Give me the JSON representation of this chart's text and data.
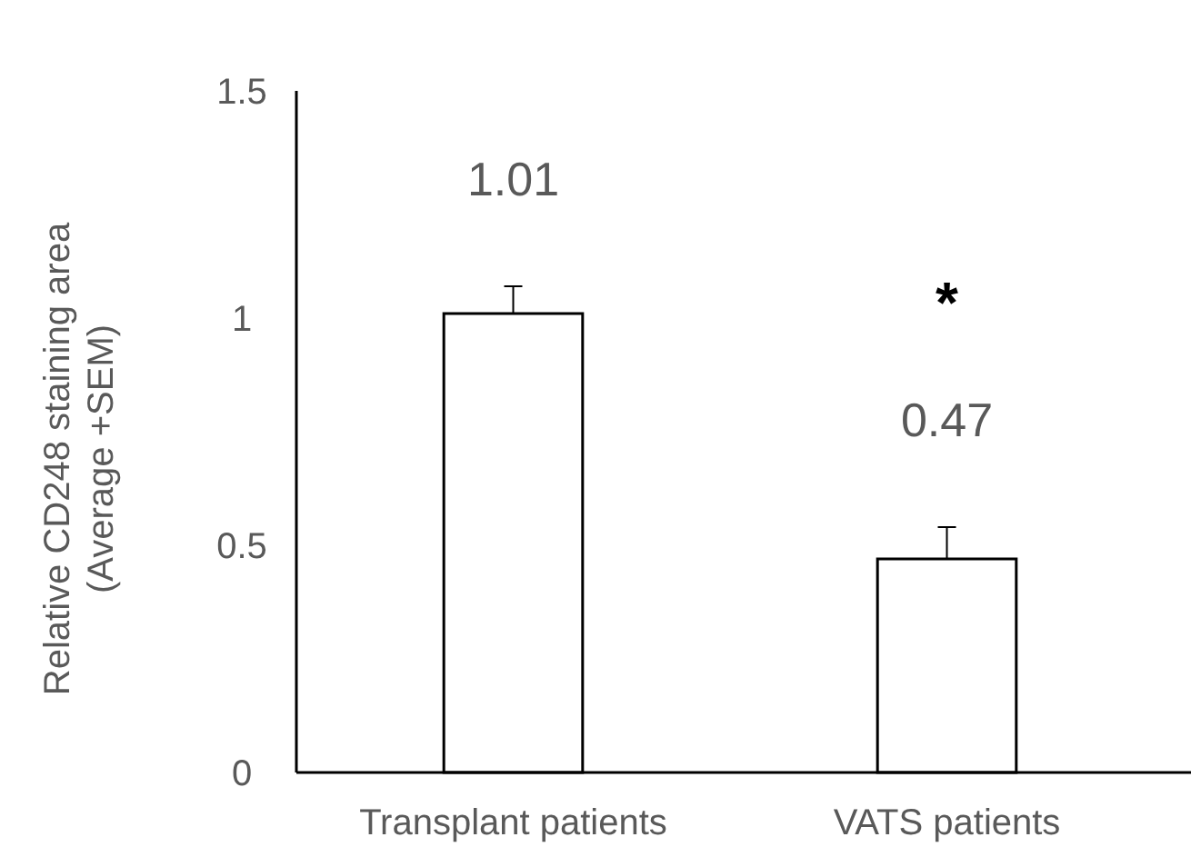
{
  "chart_data": {
    "type": "bar",
    "ylabel": "Relative CD248 staining area\n(Average +SEM)",
    "categories": [
      "Transplant patients",
      "VATS patients"
    ],
    "values": [
      1.01,
      0.47
    ],
    "errors": [
      [
        1.01,
        1.07
      ],
      [
        0.47,
        0.54
      ]
    ],
    "color": "#ffffff",
    "data_labels": true,
    "ylim": [
      0,
      1.5
    ],
    "yticks": [
      0,
      0.5,
      1,
      1.5
    ],
    "annotations": [
      "*"
    ],
    "grid": false
  }
}
